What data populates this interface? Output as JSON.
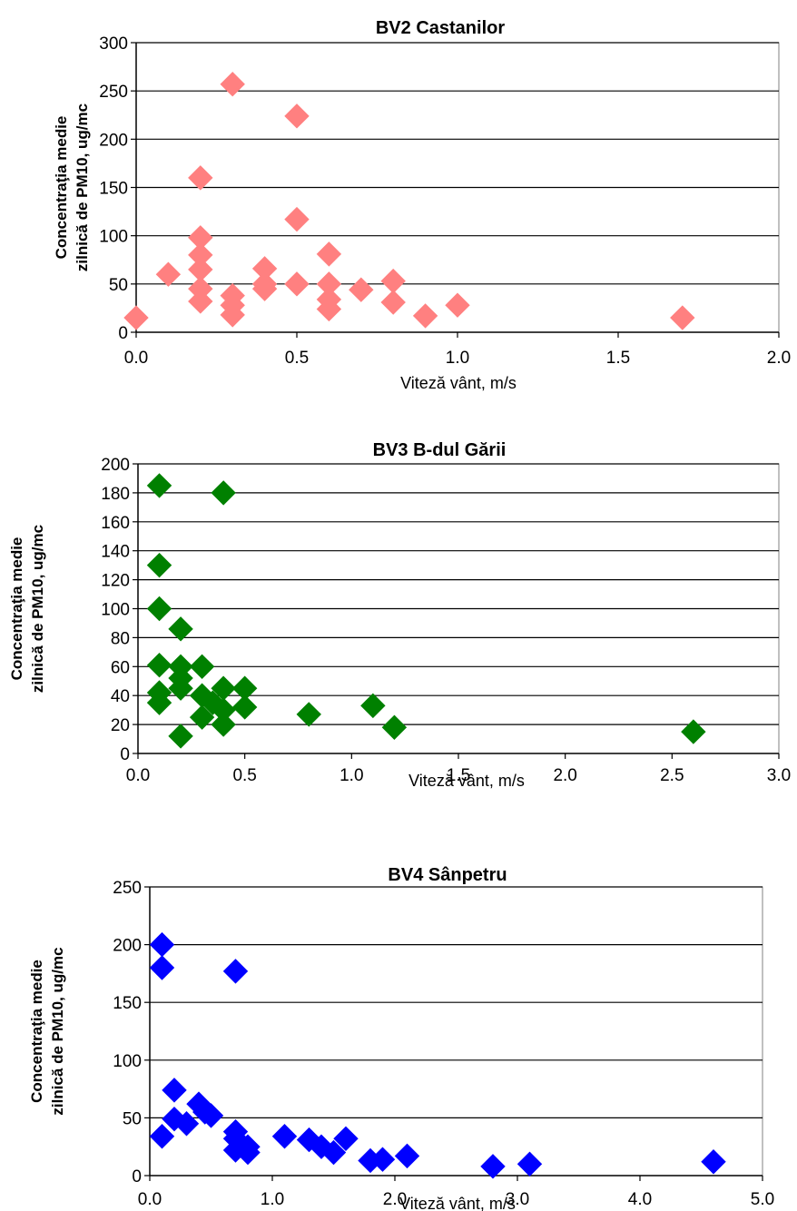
{
  "chart_data": [
    {
      "type": "scatter",
      "title": "BV2 Castanilor",
      "xlabel": "Viteză vânt, m/s",
      "ylabel": [
        "Concentraţia medie",
        "zilnică de PM10, ug/mc"
      ],
      "xlim": [
        0,
        2
      ],
      "xstep": 0.5,
      "xdecimals": 1,
      "ylim": [
        0,
        300
      ],
      "ystep": 50,
      "grid": "horizontal",
      "color": "#FF8080",
      "points": [
        {
          "x": 0.0,
          "y": 15
        },
        {
          "x": 0.1,
          "y": 60
        },
        {
          "x": 0.2,
          "y": 160
        },
        {
          "x": 0.2,
          "y": 98
        },
        {
          "x": 0.2,
          "y": 80
        },
        {
          "x": 0.2,
          "y": 65
        },
        {
          "x": 0.2,
          "y": 45
        },
        {
          "x": 0.2,
          "y": 32
        },
        {
          "x": 0.3,
          "y": 257
        },
        {
          "x": 0.3,
          "y": 38
        },
        {
          "x": 0.3,
          "y": 28
        },
        {
          "x": 0.3,
          "y": 18
        },
        {
          "x": 0.4,
          "y": 66
        },
        {
          "x": 0.4,
          "y": 50
        },
        {
          "x": 0.4,
          "y": 45
        },
        {
          "x": 0.5,
          "y": 224
        },
        {
          "x": 0.5,
          "y": 117
        },
        {
          "x": 0.5,
          "y": 50
        },
        {
          "x": 0.6,
          "y": 81
        },
        {
          "x": 0.6,
          "y": 50
        },
        {
          "x": 0.6,
          "y": 34
        },
        {
          "x": 0.6,
          "y": 24
        },
        {
          "x": 0.7,
          "y": 44
        },
        {
          "x": 0.8,
          "y": 53
        },
        {
          "x": 0.8,
          "y": 31
        },
        {
          "x": 0.9,
          "y": 17
        },
        {
          "x": 1.0,
          "y": 28
        },
        {
          "x": 1.7,
          "y": 15
        }
      ]
    },
    {
      "type": "scatter",
      "title": "BV3 B-dul Gării",
      "xlabel": "Viteză vânt, m/s",
      "ylabel": [
        "Concentraţia medie",
        "zilnică de PM10, ug/mc"
      ],
      "xlim": [
        0,
        3
      ],
      "xstep": 0.5,
      "xdecimals": 1,
      "ylim": [
        0,
        200
      ],
      "ystep": 20,
      "grid": "horizontal",
      "color": "#008000",
      "points": [
        {
          "x": 0.1,
          "y": 185
        },
        {
          "x": 0.1,
          "y": 130
        },
        {
          "x": 0.1,
          "y": 100
        },
        {
          "x": 0.1,
          "y": 61
        },
        {
          "x": 0.1,
          "y": 42
        },
        {
          "x": 0.1,
          "y": 35
        },
        {
          "x": 0.2,
          "y": 86
        },
        {
          "x": 0.2,
          "y": 60
        },
        {
          "x": 0.2,
          "y": 52
        },
        {
          "x": 0.2,
          "y": 45
        },
        {
          "x": 0.2,
          "y": 12
        },
        {
          "x": 0.3,
          "y": 60
        },
        {
          "x": 0.3,
          "y": 40
        },
        {
          "x": 0.3,
          "y": 25
        },
        {
          "x": 0.35,
          "y": 35
        },
        {
          "x": 0.4,
          "y": 180
        },
        {
          "x": 0.4,
          "y": 45
        },
        {
          "x": 0.4,
          "y": 30
        },
        {
          "x": 0.4,
          "y": 20
        },
        {
          "x": 0.5,
          "y": 45
        },
        {
          "x": 0.5,
          "y": 32
        },
        {
          "x": 0.8,
          "y": 27
        },
        {
          "x": 1.1,
          "y": 33
        },
        {
          "x": 1.2,
          "y": 18
        },
        {
          "x": 2.6,
          "y": 15
        }
      ]
    },
    {
      "type": "scatter",
      "title": "BV4 Sânpetru",
      "xlabel": "Viteză vânt, m/s",
      "ylabel": [
        "Concentraţia medie",
        "zilnică de PM10, ug/mc"
      ],
      "xlim": [
        0,
        5
      ],
      "xstep": 1,
      "xdecimals": 1,
      "ylim": [
        0,
        250
      ],
      "ystep": 50,
      "grid": "horizontal",
      "color": "#0000FF",
      "points": [
        {
          "x": 0.1,
          "y": 200
        },
        {
          "x": 0.1,
          "y": 180
        },
        {
          "x": 0.1,
          "y": 34
        },
        {
          "x": 0.2,
          "y": 74
        },
        {
          "x": 0.2,
          "y": 49
        },
        {
          "x": 0.3,
          "y": 45
        },
        {
          "x": 0.4,
          "y": 62
        },
        {
          "x": 0.45,
          "y": 55
        },
        {
          "x": 0.5,
          "y": 52
        },
        {
          "x": 0.7,
          "y": 177
        },
        {
          "x": 0.7,
          "y": 38
        },
        {
          "x": 0.7,
          "y": 32
        },
        {
          "x": 0.7,
          "y": 22
        },
        {
          "x": 0.8,
          "y": 25
        },
        {
          "x": 0.8,
          "y": 20
        },
        {
          "x": 1.1,
          "y": 34
        },
        {
          "x": 1.3,
          "y": 31
        },
        {
          "x": 1.4,
          "y": 25
        },
        {
          "x": 1.5,
          "y": 20
        },
        {
          "x": 1.6,
          "y": 32
        },
        {
          "x": 1.8,
          "y": 13
        },
        {
          "x": 1.9,
          "y": 14
        },
        {
          "x": 2.1,
          "y": 17
        },
        {
          "x": 2.8,
          "y": 8
        },
        {
          "x": 3.1,
          "y": 10
        },
        {
          "x": 4.6,
          "y": 12
        }
      ]
    }
  ]
}
